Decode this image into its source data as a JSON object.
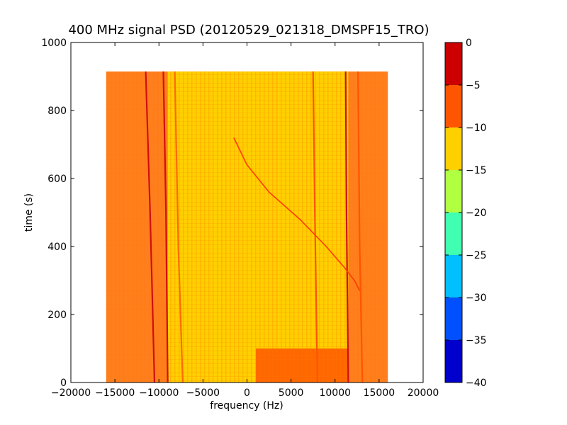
{
  "chart_data": {
    "type": "heatmap",
    "title": "400 MHz signal PSD (20120529_021318_DMSPF15_TRO)",
    "xlabel": "frequency (Hz)",
    "ylabel": "time (s)",
    "xlim": [
      -20000,
      20000
    ],
    "ylim": [
      0,
      1000
    ],
    "xticks": [
      "−20000",
      "−15000",
      "−10000",
      "−5000",
      "0",
      "5000",
      "10000",
      "15000",
      "20000"
    ],
    "xtick_values": [
      -20000,
      -15000,
      -10000,
      -5000,
      0,
      5000,
      10000,
      15000,
      20000
    ],
    "yticks": [
      "0",
      "200",
      "400",
      "600",
      "800",
      "1000"
    ],
    "ytick_values": [
      0,
      200,
      400,
      600,
      800,
      1000
    ],
    "data_extent": {
      "freq_min": -16000,
      "freq_max": 16000,
      "time_min": 0,
      "time_max": 915
    },
    "colorbar": {
      "levels": [
        -40,
        -35,
        -30,
        -25,
        -20,
        -15,
        -10,
        -5,
        0
      ],
      "tick_labels": [
        "−40",
        "−35",
        "−30",
        "−25",
        "−20",
        "−15",
        "−10",
        "−5",
        "0"
      ],
      "colors": [
        "#0000cc",
        "#0050ff",
        "#00c0ff",
        "#40ffb0",
        "#b0ff40",
        "#ffd000",
        "#ff5500",
        "#cc0000"
      ]
    },
    "regions": [
      {
        "name": "outer",
        "freq_min": -16000,
        "freq_max": 16000,
        "level": "-10 to -5",
        "color": "#ff7f1e"
      },
      {
        "name": "core",
        "freq_min": -9000,
        "freq_max": 11500,
        "level": "-15 to -10",
        "color": "#ffd000"
      },
      {
        "name": "upper-right",
        "freq_min": 7500,
        "freq_max": 11500,
        "time_min": 400,
        "time_max": 915,
        "color": "#ffd000"
      },
      {
        "name": "low-band",
        "freq_min": 1000,
        "freq_max": 11500,
        "time_min": 0,
        "time_max": 100,
        "color": "#ff5500"
      }
    ],
    "lines": [
      {
        "name": "carrier-left-1",
        "color": "#d01010",
        "points": [
          [
            -11500,
            915
          ],
          [
            -11000,
            500
          ],
          [
            -10500,
            0
          ]
        ]
      },
      {
        "name": "carrier-left-2",
        "color": "#d01010",
        "points": [
          [
            -9500,
            915
          ],
          [
            -9200,
            500
          ],
          [
            -9000,
            0
          ]
        ]
      },
      {
        "name": "carrier-left-3",
        "color": "#ff6a00",
        "points": [
          [
            -8200,
            915
          ],
          [
            -7800,
            400
          ],
          [
            -7300,
            0
          ]
        ]
      },
      {
        "name": "carrier-mid",
        "color": "#ff5500",
        "points": [
          [
            7500,
            915
          ],
          [
            7700,
            500
          ],
          [
            8000,
            0
          ]
        ]
      },
      {
        "name": "carrier-right-1",
        "color": "#d01010",
        "points": [
          [
            11200,
            915
          ],
          [
            11300,
            500
          ],
          [
            11500,
            0
          ]
        ]
      },
      {
        "name": "carrier-right-2",
        "color": "#ff5500",
        "points": [
          [
            12600,
            915
          ],
          [
            12800,
            400
          ],
          [
            13100,
            0
          ]
        ]
      },
      {
        "name": "doppler-sweep",
        "color": "#ff3a00",
        "points": [
          [
            -1500,
            720
          ],
          [
            0,
            640
          ],
          [
            2500,
            560
          ],
          [
            6000,
            480
          ],
          [
            9000,
            400
          ],
          [
            11000,
            340
          ],
          [
            12200,
            300
          ],
          [
            12800,
            270
          ]
        ]
      }
    ]
  }
}
